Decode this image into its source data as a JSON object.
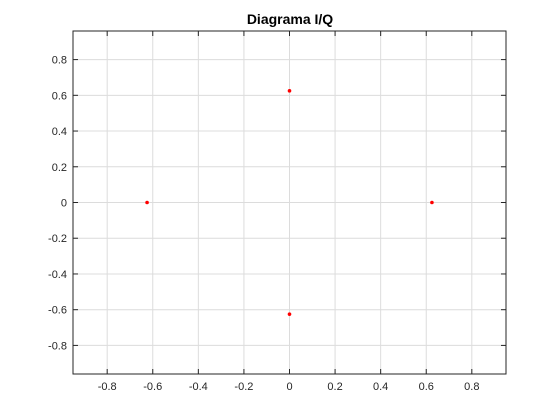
{
  "chart_data": {
    "type": "scatter",
    "title": "Diagrama I/Q",
    "xlabel": "",
    "ylabel": "",
    "xlim": [
      -0.95,
      0.95
    ],
    "ylim": [
      -0.96,
      0.96
    ],
    "x_ticks": [
      -0.8,
      -0.6,
      -0.4,
      -0.2,
      0,
      0.2,
      0.4,
      0.6,
      0.8
    ],
    "x_tick_labels": [
      "-0.8",
      "-0.6",
      "-0.4",
      "-0.2",
      "0",
      "0.2",
      "0.4",
      "0.6",
      "0.8"
    ],
    "y_ticks": [
      -0.8,
      -0.6,
      -0.4,
      -0.2,
      0,
      0.2,
      0.4,
      0.6,
      0.8
    ],
    "y_tick_labels": [
      "-0.8",
      "-0.6",
      "-0.4",
      "-0.2",
      "0",
      "0.2",
      "0.4",
      "0.6",
      "0.8"
    ],
    "grid": true,
    "marker_color": "#ff0000",
    "points": [
      {
        "x": 0,
        "y": 0.625
      },
      {
        "x": -0.625,
        "y": 0
      },
      {
        "x": 0.625,
        "y": 0
      },
      {
        "x": 0,
        "y": -0.625
      }
    ]
  }
}
